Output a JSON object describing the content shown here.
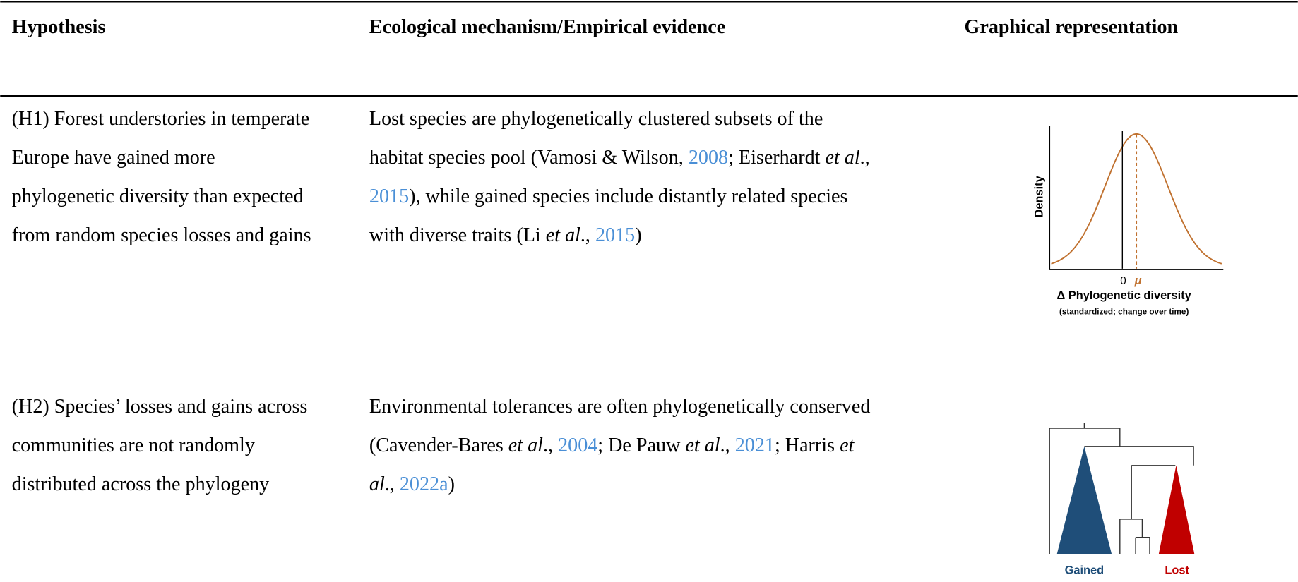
{
  "table": {
    "headers": [
      "Hypothesis",
      "Ecological mechanism/Empirical evidence",
      "Graphical representation"
    ],
    "rows": [
      {
        "hypothesis": [
          "(H1) Forest understories in temperate",
          "Europe have gained more",
          "phylogenetic diversity than expected",
          "from random species losses and gains"
        ],
        "mechanism": [
          [
            "Lost species are phylogenetically clustered subsets of the"
          ],
          [
            "habitat species pool (Vamosi & Wilson, ",
            "2008",
            "; Eiserhardt ",
            "et al",
            "., "
          ],
          [
            "2015",
            "), while gained species include distantly related species"
          ],
          [
            "with diverse traits (Li ",
            "et al",
            "., ",
            "2015",
            ")"
          ]
        ],
        "figure": {
          "y_label": "Density",
          "x_tick": "0",
          "x_marker": "μ",
          "x_label": "Δ Phylogenetic diversity",
          "x_sublabel": "(standardized; change over time)"
        }
      },
      {
        "hypothesis": [
          "(H2) Species’ losses and gains across",
          "communities are not randomly",
          "distributed across the phylogeny"
        ],
        "mechanism": [
          [
            "Environmental tolerances are often phylogenetically conserved"
          ],
          [
            "(Cavender-Bares ",
            "et al",
            "., ",
            "2004",
            "; De Pauw ",
            "et al",
            "., ",
            "2021",
            "; Harris ",
            "et"
          ],
          [
            "al",
            "., ",
            "2022a",
            ")"
          ]
        ],
        "figure": {
          "left_label": "Gained",
          "right_label": "Lost"
        }
      }
    ]
  }
}
